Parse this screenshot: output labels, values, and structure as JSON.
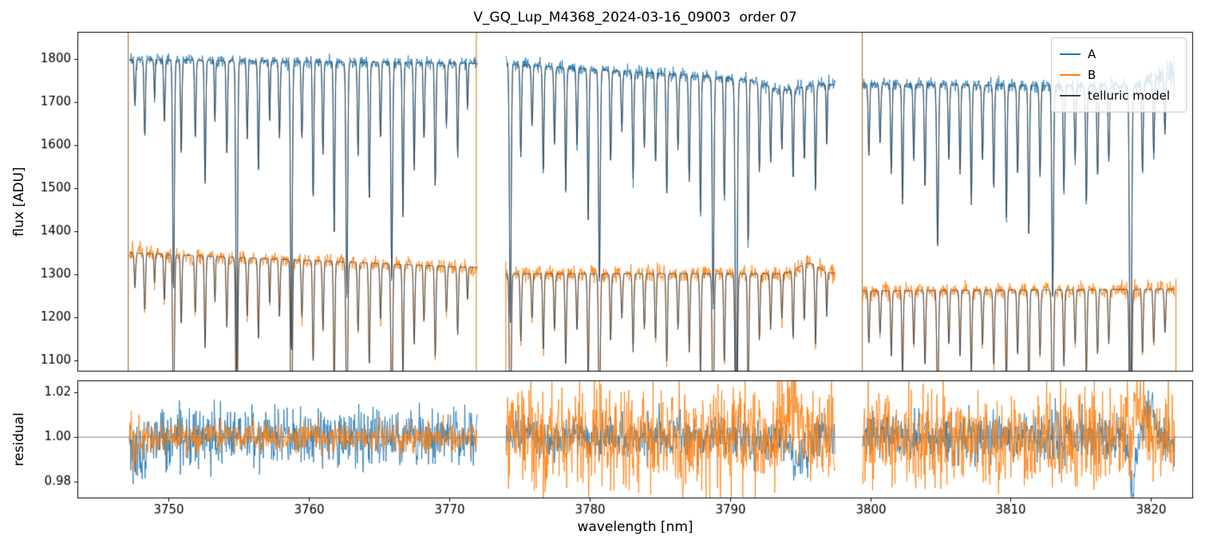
{
  "chart_data": {
    "type": "line",
    "title": "V_GQ_Lup_M4368_2024-03-16_09003  order 07",
    "xlabel": "wavelength [nm]",
    "xlim": [
      3743.5,
      3823.0
    ],
    "xticks": [
      3750,
      3760,
      3770,
      3780,
      3790,
      3800,
      3810,
      3820
    ],
    "panels": [
      {
        "name": "flux",
        "ylabel": "flux [ADU]",
        "ylim": [
          1075,
          1862
        ],
        "yticks": [
          1100,
          1200,
          1300,
          1400,
          1500,
          1600,
          1700,
          1800
        ]
      },
      {
        "name": "residual",
        "ylabel": "residual",
        "ylim": [
          0.9725,
          1.0255
        ],
        "yticks": [
          0.98,
          1.0,
          1.02
        ],
        "hline": 1.0
      }
    ],
    "legend": [
      {
        "label": "A",
        "color": "#1f77b4"
      },
      {
        "label": "B",
        "color": "#ff7f0e"
      },
      {
        "label": "telluric model",
        "color": "#36454f"
      }
    ],
    "colors": {
      "A": "#1f77b4",
      "B": "#ff7f0e",
      "telluric": "#36454f",
      "spine": "#000000",
      "hline": "#4d4d4d",
      "background": "#ffffff"
    },
    "segments": [
      {
        "range": [
          3747.2,
          3772.0
        ],
        "A_baseline": [
          1798,
          1789
        ],
        "B_baseline": [
          1350,
          1316
        ],
        "A_noise": 7,
        "B_noise": 9,
        "B_noise_start": 13,
        "B_ramp_nm": 1.5,
        "res_A": 0.0065,
        "res_B": 0.0035,
        "res_B_start": 0.009,
        "res_ramp_nm": 1.5,
        "res_events": [
          {
            "s": "A",
            "x": 3747.9,
            "dy": -0.006,
            "w": 0.5
          }
        ],
        "lines": [
          [
            3747.6,
            0.06,
            0.05
          ],
          [
            3748.3,
            0.1,
            0.05
          ],
          [
            3749.0,
            0.05,
            0.04
          ],
          [
            3749.7,
            0.08,
            0.05
          ],
          [
            3750.35,
            0.3,
            0.06
          ],
          [
            3750.9,
            0.12,
            0.05
          ],
          [
            3751.9,
            0.1,
            0.05
          ],
          [
            3752.6,
            0.16,
            0.05
          ],
          [
            3753.3,
            0.08,
            0.04
          ],
          [
            3754.15,
            0.12,
            0.05
          ],
          [
            3754.85,
            0.4,
            0.06
          ],
          [
            3755.6,
            0.1,
            0.05
          ],
          [
            3756.4,
            0.14,
            0.05
          ],
          [
            3757.2,
            0.08,
            0.04
          ],
          [
            3757.9,
            0.1,
            0.05
          ],
          [
            3758.75,
            0.38,
            0.06
          ],
          [
            3759.5,
            0.1,
            0.05
          ],
          [
            3760.3,
            0.18,
            0.05
          ],
          [
            3761.0,
            0.12,
            0.05
          ],
          [
            3761.8,
            0.22,
            0.05
          ],
          [
            3762.7,
            0.3,
            0.06
          ],
          [
            3763.5,
            0.12,
            0.05
          ],
          [
            3764.3,
            0.18,
            0.05
          ],
          [
            3765.1,
            0.1,
            0.05
          ],
          [
            3765.9,
            0.28,
            0.06
          ],
          [
            3766.7,
            0.2,
            0.05
          ],
          [
            3767.5,
            0.14,
            0.05
          ],
          [
            3768.2,
            0.1,
            0.05
          ],
          [
            3769.0,
            0.16,
            0.05
          ],
          [
            3769.8,
            0.08,
            0.05
          ],
          [
            3770.6,
            0.12,
            0.05
          ],
          [
            3771.3,
            0.06,
            0.04
          ]
        ]
      },
      {
        "range": [
          3774.05,
          3797.5
        ],
        "A_baseline": [
          1788,
          1740
        ],
        "B_baseline": [
          1302,
          1302
        ],
        "A_broad": [
          [
            3793.8,
            20,
            1.2
          ]
        ],
        "B_broad": [
          [
            3795.6,
            -24,
            0.7
          ]
        ],
        "A_noise": 8,
        "B_noise": 10,
        "res_A": 0.005,
        "res_B": 0.0115,
        "res_events": [
          {
            "s": "B",
            "x": 3794.5,
            "dy": 0.018,
            "w": 0.5
          },
          {
            "s": "A",
            "x": 3794.9,
            "dy": -0.013,
            "w": 0.5
          }
        ],
        "lines": [
          [
            3774.35,
            0.34,
            0.06
          ],
          [
            3775.1,
            0.12,
            0.05
          ],
          [
            3775.9,
            0.08,
            0.05
          ],
          [
            3776.7,
            0.14,
            0.05
          ],
          [
            3777.5,
            0.1,
            0.05
          ],
          [
            3778.3,
            0.16,
            0.05
          ],
          [
            3779.1,
            0.1,
            0.05
          ],
          [
            3779.9,
            0.2,
            0.05
          ],
          [
            3780.7,
            0.28,
            0.06
          ],
          [
            3781.5,
            0.12,
            0.05
          ],
          [
            3782.3,
            0.08,
            0.05
          ],
          [
            3783.1,
            0.14,
            0.05
          ],
          [
            3783.9,
            0.1,
            0.05
          ],
          [
            3784.7,
            0.12,
            0.05
          ],
          [
            3785.5,
            0.16,
            0.05
          ],
          [
            3786.3,
            0.1,
            0.05
          ],
          [
            3787.1,
            0.14,
            0.05
          ],
          [
            3787.9,
            0.18,
            0.05
          ],
          [
            3788.8,
            0.3,
            0.06
          ],
          [
            3789.6,
            0.16,
            0.05
          ],
          [
            3790.45,
            0.45,
            0.07
          ],
          [
            3791.3,
            0.22,
            0.05
          ],
          [
            3792.1,
            0.12,
            0.05
          ],
          [
            3792.9,
            0.1,
            0.05
          ],
          [
            3793.7,
            0.08,
            0.05
          ],
          [
            3794.5,
            0.12,
            0.05
          ],
          [
            3795.3,
            0.1,
            0.05
          ],
          [
            3796.1,
            0.14,
            0.05
          ],
          [
            3796.9,
            0.08,
            0.04
          ]
        ]
      },
      {
        "range": [
          3799.45,
          3821.7
        ],
        "A_baseline": [
          1742,
          1734
        ],
        "A_broad": [
          [
            3821.6,
            -35,
            1.2
          ]
        ],
        "B_baseline": [
          1262,
          1266
        ],
        "A_noise": 8,
        "A_noise_end": 24,
        "A_ramp_nm": 2.2,
        "B_noise": 9,
        "res_A": 0.0055,
        "res_B": 0.011,
        "res_events": [
          {
            "s": "A",
            "x": 3818.7,
            "dy": -0.02,
            "w": 0.25
          },
          {
            "s": "A",
            "x": 3819.9,
            "dy": 0.012,
            "w": 0.35
          },
          {
            "s": "B",
            "x": 3819.2,
            "dy": 0.014,
            "w": 0.3
          }
        ],
        "lines": [
          [
            3799.9,
            0.1,
            0.05
          ],
          [
            3800.7,
            0.08,
            0.05
          ],
          [
            3801.5,
            0.12,
            0.05
          ],
          [
            3802.3,
            0.16,
            0.05
          ],
          [
            3803.1,
            0.1,
            0.05
          ],
          [
            3803.9,
            0.14,
            0.05
          ],
          [
            3804.8,
            0.22,
            0.06
          ],
          [
            3805.6,
            0.1,
            0.05
          ],
          [
            3806.4,
            0.12,
            0.05
          ],
          [
            3807.2,
            0.16,
            0.05
          ],
          [
            3808.0,
            0.1,
            0.05
          ],
          [
            3808.8,
            0.14,
            0.05
          ],
          [
            3809.7,
            0.18,
            0.05
          ],
          [
            3810.5,
            0.12,
            0.05
          ],
          [
            3811.3,
            0.2,
            0.05
          ],
          [
            3812.1,
            0.12,
            0.05
          ],
          [
            3813.0,
            0.28,
            0.06
          ],
          [
            3813.8,
            0.14,
            0.05
          ],
          [
            3814.6,
            0.1,
            0.05
          ],
          [
            3815.4,
            0.16,
            0.05
          ],
          [
            3816.2,
            0.12,
            0.05
          ],
          [
            3817.0,
            0.1,
            0.05
          ],
          [
            3818.55,
            0.48,
            0.07
          ],
          [
            3819.4,
            0.12,
            0.05
          ],
          [
            3820.2,
            0.1,
            0.05
          ],
          [
            3821.0,
            0.08,
            0.05
          ]
        ]
      }
    ],
    "vlines": [
      {
        "x": 3747.12,
        "color": "#a85f1e"
      },
      {
        "x": 3771.93,
        "color": "#e8821e"
      },
      {
        "x": 3774.03,
        "color": "#e8821e",
        "y1": 1330
      },
      {
        "x": 3799.43,
        "color": "#b5651d"
      },
      {
        "x": 3821.78,
        "color": "#e8821e",
        "y1": 1290
      }
    ]
  }
}
